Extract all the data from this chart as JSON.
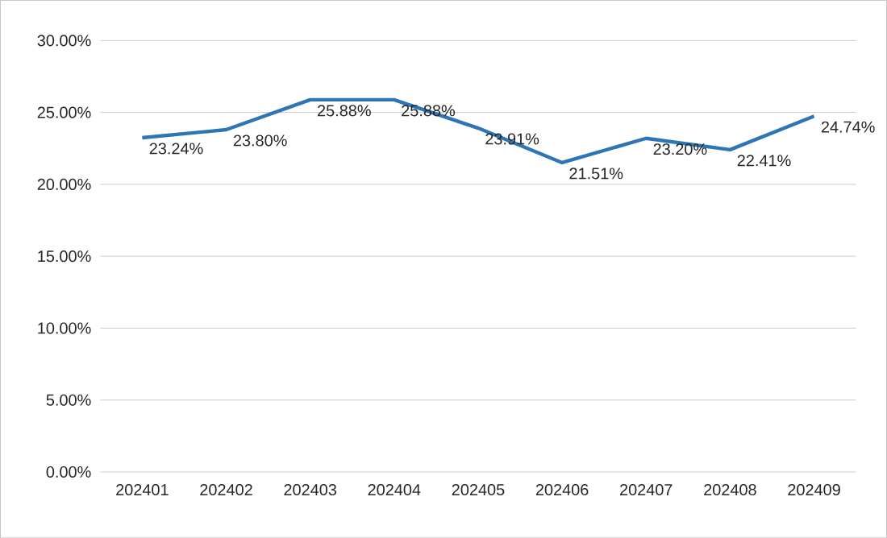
{
  "chart_data": {
    "type": "line",
    "categories": [
      "202401",
      "202402",
      "202403",
      "202404",
      "202405",
      "202406",
      "202407",
      "202408",
      "202409"
    ],
    "values": [
      23.24,
      23.8,
      25.88,
      25.88,
      23.91,
      21.51,
      23.2,
      22.41,
      24.74
    ],
    "value_labels": [
      "23.24%",
      "23.80%",
      "25.88%",
      "25.88%",
      "23.91%",
      "21.51%",
      "23.20%",
      "22.41%",
      "24.74%"
    ],
    "color": "#2e75b6",
    "marker": "none",
    "line_style": "solid",
    "grid": "y",
    "ylim": [
      0,
      30
    ],
    "yticks": [
      {
        "value": 0,
        "label": "0.00%"
      },
      {
        "value": 5,
        "label": "5.00%"
      },
      {
        "value": 10,
        "label": "10.00%"
      },
      {
        "value": 15,
        "label": "15.00%"
      },
      {
        "value": 20,
        "label": "20.00%"
      },
      {
        "value": 25,
        "label": "25.00%"
      },
      {
        "value": 30,
        "label": "30.00%"
      }
    ]
  }
}
